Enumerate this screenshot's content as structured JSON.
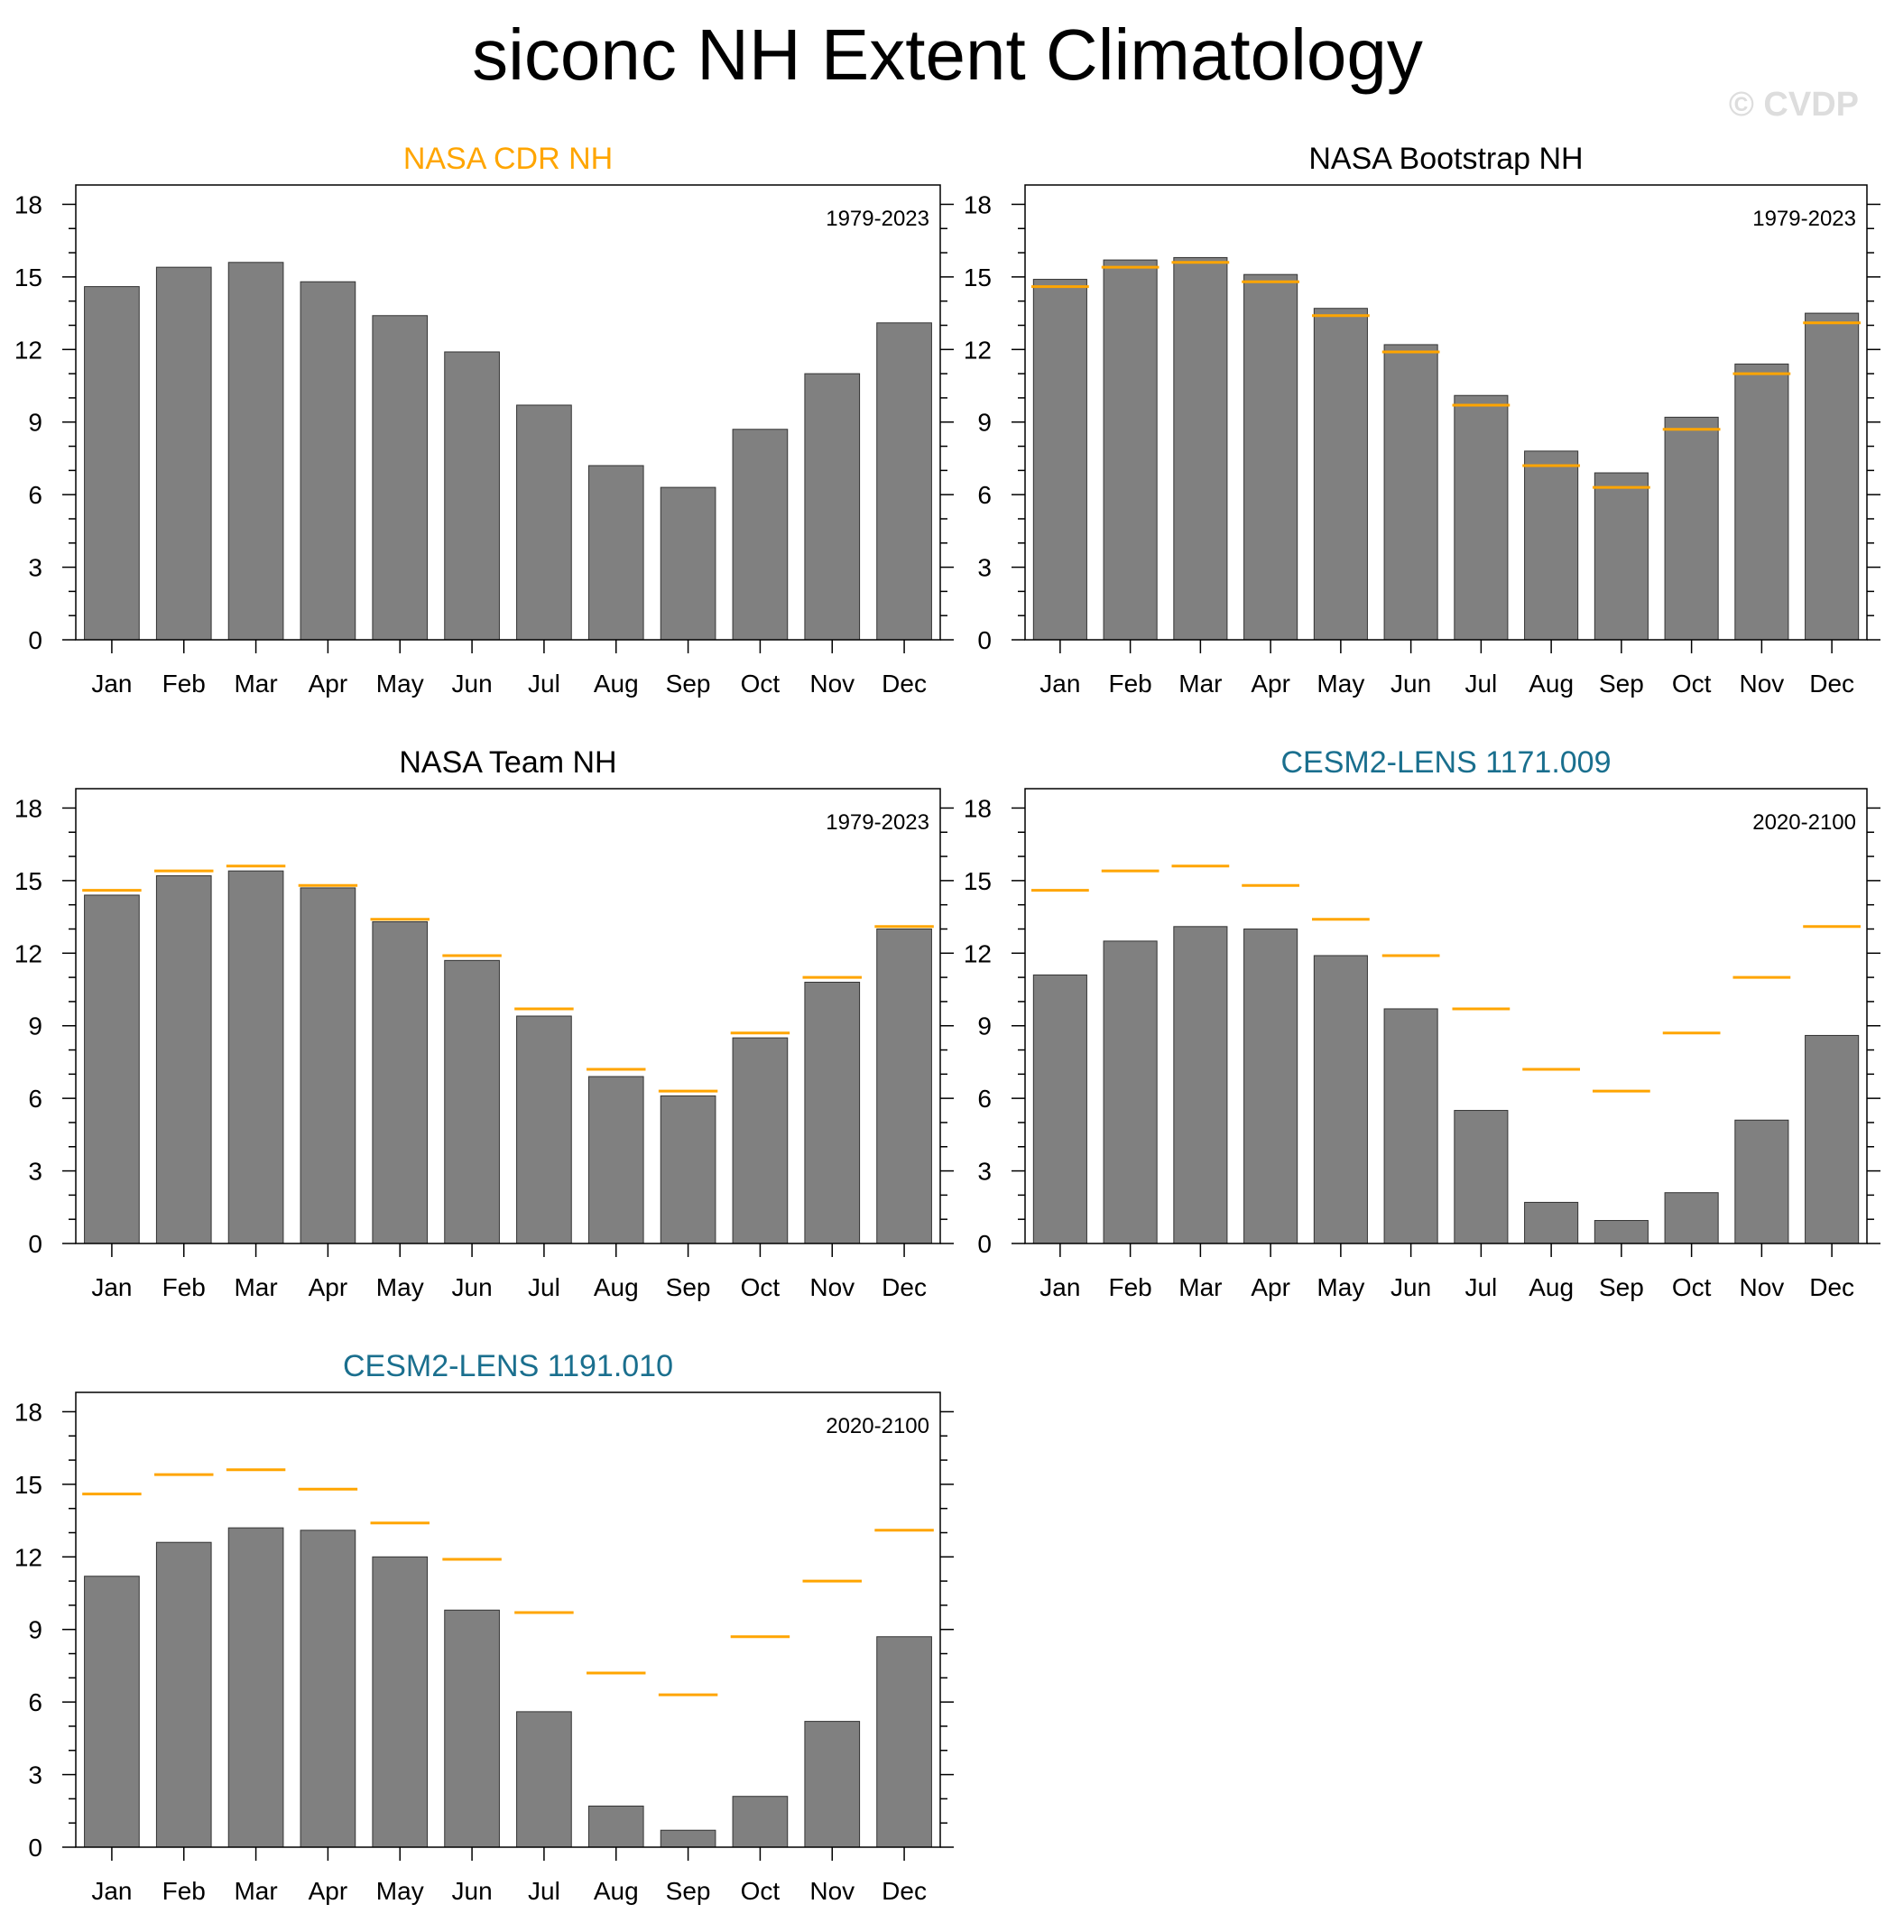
{
  "title": "siconc NH Extent Climatology",
  "watermark": "© CVDP",
  "colors": {
    "bar": "#808080",
    "bar_edge": "#333333",
    "reference": "#ffa500",
    "obs_title": "#ffa500",
    "model_title": "#1a6f8e",
    "text": "#000000",
    "watermark": "#dddddd"
  },
  "chart_data": [
    {
      "type": "bar",
      "title": "NASA CDR NH",
      "title_color": "#ffa500",
      "period": "1979-2023",
      "categories": [
        "Jan",
        "Feb",
        "Mar",
        "Apr",
        "May",
        "Jun",
        "Jul",
        "Aug",
        "Sep",
        "Oct",
        "Nov",
        "Dec"
      ],
      "values": [
        14.6,
        15.4,
        15.6,
        14.8,
        13.4,
        11.9,
        9.7,
        7.2,
        6.3,
        8.7,
        11.0,
        13.1
      ],
      "ylim": [
        0,
        18.8
      ],
      "yticks": [
        0,
        3,
        6,
        9,
        12,
        15,
        18
      ],
      "reference_values": null
    },
    {
      "type": "bar",
      "title": "NASA Bootstrap NH",
      "title_color": "#000000",
      "period": "1979-2023",
      "categories": [
        "Jan",
        "Feb",
        "Mar",
        "Apr",
        "May",
        "Jun",
        "Jul",
        "Aug",
        "Sep",
        "Oct",
        "Nov",
        "Dec"
      ],
      "values": [
        14.9,
        15.7,
        15.8,
        15.1,
        13.7,
        12.2,
        10.1,
        7.8,
        6.9,
        9.2,
        11.4,
        13.5
      ],
      "ylim": [
        0,
        18.8
      ],
      "yticks": [
        0,
        3,
        6,
        9,
        12,
        15,
        18
      ],
      "reference_values": [
        14.6,
        15.4,
        15.6,
        14.8,
        13.4,
        11.9,
        9.7,
        7.2,
        6.3,
        8.7,
        11.0,
        13.1
      ]
    },
    {
      "type": "bar",
      "title": "NASA Team NH",
      "title_color": "#000000",
      "period": "1979-2023",
      "categories": [
        "Jan",
        "Feb",
        "Mar",
        "Apr",
        "May",
        "Jun",
        "Jul",
        "Aug",
        "Sep",
        "Oct",
        "Nov",
        "Dec"
      ],
      "values": [
        14.4,
        15.2,
        15.4,
        14.7,
        13.3,
        11.7,
        9.4,
        6.9,
        6.1,
        8.5,
        10.8,
        13.0
      ],
      "ylim": [
        0,
        18.8
      ],
      "yticks": [
        0,
        3,
        6,
        9,
        12,
        15,
        18
      ],
      "reference_values": [
        14.6,
        15.4,
        15.6,
        14.8,
        13.4,
        11.9,
        9.7,
        7.2,
        6.3,
        8.7,
        11.0,
        13.1
      ]
    },
    {
      "type": "bar",
      "title": "CESM2-LENS 1171.009",
      "title_color": "#1a6f8e",
      "period": "2020-2100",
      "categories": [
        "Jan",
        "Feb",
        "Mar",
        "Apr",
        "May",
        "Jun",
        "Jul",
        "Aug",
        "Sep",
        "Oct",
        "Nov",
        "Dec"
      ],
      "values": [
        11.1,
        12.5,
        13.1,
        13.0,
        11.9,
        9.7,
        5.5,
        1.7,
        0.95,
        2.1,
        5.1,
        8.6
      ],
      "ylim": [
        0,
        18.8
      ],
      "yticks": [
        0,
        3,
        6,
        9,
        12,
        15,
        18
      ],
      "reference_values": [
        14.6,
        15.4,
        15.6,
        14.8,
        13.4,
        11.9,
        9.7,
        7.2,
        6.3,
        8.7,
        11.0,
        13.1
      ]
    },
    {
      "type": "bar",
      "title": "CESM2-LENS 1191.010",
      "title_color": "#1a6f8e",
      "period": "2020-2100",
      "categories": [
        "Jan",
        "Feb",
        "Mar",
        "Apr",
        "May",
        "Jun",
        "Jul",
        "Aug",
        "Sep",
        "Oct",
        "Nov",
        "Dec"
      ],
      "values": [
        11.2,
        12.6,
        13.2,
        13.1,
        12.0,
        9.8,
        5.6,
        1.7,
        0.7,
        2.1,
        5.2,
        8.7
      ],
      "ylim": [
        0,
        18.8
      ],
      "yticks": [
        0,
        3,
        6,
        9,
        12,
        15,
        18
      ],
      "reference_values": [
        14.6,
        15.4,
        15.6,
        14.8,
        13.4,
        11.9,
        9.7,
        7.2,
        6.3,
        8.7,
        11.0,
        13.1
      ]
    }
  ]
}
